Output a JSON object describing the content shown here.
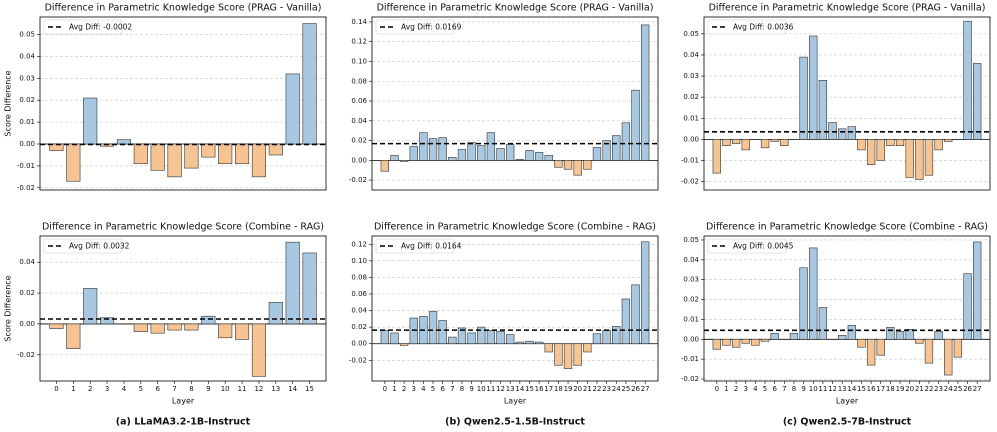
{
  "captions": [
    "(a) LLaMA3.2-1B-Instruct",
    "(b) Qwen2.5-1.5B-Instruct",
    "(c) Qwen2.5-7B-Instruct"
  ],
  "chart_data": [
    {
      "type": "bar",
      "title": "Difference in Parametric Knowledge Score (PRAG - Vanilla)",
      "y_label": "Score Difference",
      "values": [
        -0.003,
        -0.017,
        0.021,
        -0.001,
        0.002,
        -0.009,
        -0.012,
        -0.015,
        -0.011,
        -0.006,
        -0.009,
        -0.009,
        -0.015,
        -0.005,
        0.032,
        0.055
      ],
      "pos_color": "#a7c8e0",
      "neg_color": "#f6c393",
      "ylim": [
        -0.021,
        0.058
      ],
      "yticks": [
        -0.02,
        -0.01,
        {
          "value": 0,
          "label": "0.00"
        },
        0.01,
        0.02,
        0.03,
        0.04,
        0.05
      ],
      "grid": true,
      "legend": "upper left",
      "avg_line": {
        "label": "Avg Diff: -0.0002",
        "value": -0.0002
      }
    },
    {
      "type": "bar",
      "title": "Difference in Parametric Knowledge Score (PRAG - Vanilla)",
      "values": [
        -0.011,
        0.005,
        -0.001,
        0.014,
        0.028,
        0.022,
        0.023,
        0.003,
        0.011,
        0.018,
        0.015,
        0.028,
        0.012,
        0.016,
        0.001,
        0.01,
        0.008,
        0.005,
        -0.007,
        -0.009,
        -0.015,
        -0.009,
        0.013,
        0.02,
        0.025,
        0.038,
        0.071,
        0.137
      ],
      "pos_color": "#a7c8e0",
      "neg_color": "#f6c393",
      "ylim": [
        -0.03,
        0.145
      ],
      "yticks": [
        -0.02,
        {
          "value": 0,
          "label": "0.00"
        },
        0.02,
        0.04,
        0.06,
        0.08,
        {
          "value": 0.1,
          "label": "0.10"
        },
        0.12,
        0.14
      ],
      "grid": true,
      "legend": "upper left",
      "avg_line": {
        "label": "Avg Diff: 0.0169",
        "value": 0.0169
      }
    },
    {
      "type": "bar",
      "title": "Difference in Parametric Knowledge Score (PRAG - Vanilla)",
      "values": [
        -0.016,
        -0.003,
        -0.002,
        -0.005,
        0.0,
        -0.004,
        -0.001,
        -0.003,
        0.0,
        0.039,
        0.049,
        0.028,
        0.008,
        0.005,
        0.006,
        -0.005,
        -0.012,
        -0.01,
        -0.003,
        -0.003,
        -0.018,
        -0.019,
        -0.017,
        -0.005,
        -0.001,
        0.0,
        0.056,
        0.036
      ],
      "pos_color": "#a7c8e0",
      "neg_color": "#f6c393",
      "ylim": [
        -0.024,
        0.058
      ],
      "yticks": [
        -0.02,
        -0.01,
        {
          "value": 0,
          "label": "0.00"
        },
        0.01,
        0.02,
        0.03,
        0.04,
        0.05
      ],
      "grid": true,
      "legend": "upper left",
      "avg_line": {
        "label": "Avg Diff: 0.0036",
        "value": 0.0036
      }
    },
    {
      "type": "bar",
      "title": "Difference in Parametric Knowledge Score (Combine - RAG)",
      "y_label": "Score Difference",
      "x_label": "Layer",
      "categories": [
        "0",
        "1",
        "2",
        "3",
        "4",
        "5",
        "6",
        "7",
        "8",
        "9",
        "10",
        "11",
        "12",
        "13",
        "14",
        "15"
      ],
      "values": [
        -0.003,
        -0.016,
        0.023,
        0.004,
        0.0,
        -0.005,
        -0.006,
        -0.004,
        -0.004,
        0.005,
        -0.009,
        -0.01,
        -0.034,
        0.014,
        0.053,
        0.046
      ],
      "pos_color": "#a7c8e0",
      "neg_color": "#f6c393",
      "ylim": [
        -0.037,
        0.057
      ],
      "yticks": [
        -0.02,
        {
          "value": 0,
          "label": "0.00"
        },
        0.02,
        0.04
      ],
      "grid": true,
      "legend": "upper left",
      "avg_line": {
        "label": "Avg Diff: 0.0032",
        "value": 0.0032
      }
    },
    {
      "type": "bar",
      "title": "Difference in Parametric Knowledge Score (Combine - RAG)",
      "x_label": "Layer",
      "categories": [
        "0",
        "1",
        "2",
        "3",
        "4",
        "5",
        "6",
        "7",
        "8",
        "9",
        "10",
        "11",
        "12",
        "13",
        "14",
        "15",
        "16",
        "17",
        "18",
        "19",
        "20",
        "21",
        "22",
        "23",
        "24",
        "25",
        "26",
        "27"
      ],
      "values": [
        0.016,
        0.013,
        -0.002,
        0.031,
        0.033,
        0.039,
        0.028,
        0.008,
        0.019,
        0.013,
        0.02,
        0.016,
        0.015,
        0.011,
        0.002,
        0.003,
        0.002,
        -0.01,
        -0.026,
        -0.03,
        -0.026,
        -0.01,
        0.012,
        0.016,
        0.021,
        0.054,
        0.071,
        0.123
      ],
      "pos_color": "#a7c8e0",
      "neg_color": "#f6c393",
      "ylim": [
        -0.045,
        0.13
      ],
      "yticks": [
        -0.02,
        {
          "value": 0,
          "label": "0.00"
        },
        0.02,
        0.04,
        0.06,
        0.08,
        {
          "value": 0.1,
          "label": "0.10"
        },
        0.12
      ],
      "grid": true,
      "legend": "upper left",
      "avg_line": {
        "label": "Avg Diff: 0.0164",
        "value": 0.0164
      }
    },
    {
      "type": "bar",
      "title": "Difference in Parametric Knowledge Score (Combine - RAG)",
      "x_label": "Layer",
      "categories": [
        "0",
        "1",
        "2",
        "3",
        "4",
        "5",
        "6",
        "7",
        "8",
        "9",
        "10",
        "11",
        "12",
        "13",
        "14",
        "15",
        "16",
        "17",
        "18",
        "19",
        "20",
        "21",
        "22",
        "23",
        "24",
        "25",
        "26",
        "27"
      ],
      "values": [
        -0.005,
        -0.003,
        -0.004,
        -0.002,
        -0.003,
        -0.001,
        0.003,
        0.0,
        0.003,
        0.036,
        0.046,
        0.016,
        0.0,
        0.002,
        0.007,
        -0.004,
        -0.013,
        -0.008,
        0.006,
        0.004,
        0.005,
        -0.002,
        -0.012,
        0.004,
        -0.018,
        -0.009,
        0.033,
        0.049
      ],
      "pos_color": "#a7c8e0",
      "neg_color": "#f6c393",
      "ylim": [
        -0.021,
        0.052
      ],
      "yticks": [
        -0.02,
        -0.01,
        {
          "value": 0,
          "label": "0.00"
        },
        0.01,
        0.02,
        0.03,
        0.04,
        0.05
      ],
      "grid": true,
      "legend": "upper left",
      "avg_line": {
        "label": "Avg Diff: 0.0045",
        "value": 0.0045
      }
    }
  ]
}
